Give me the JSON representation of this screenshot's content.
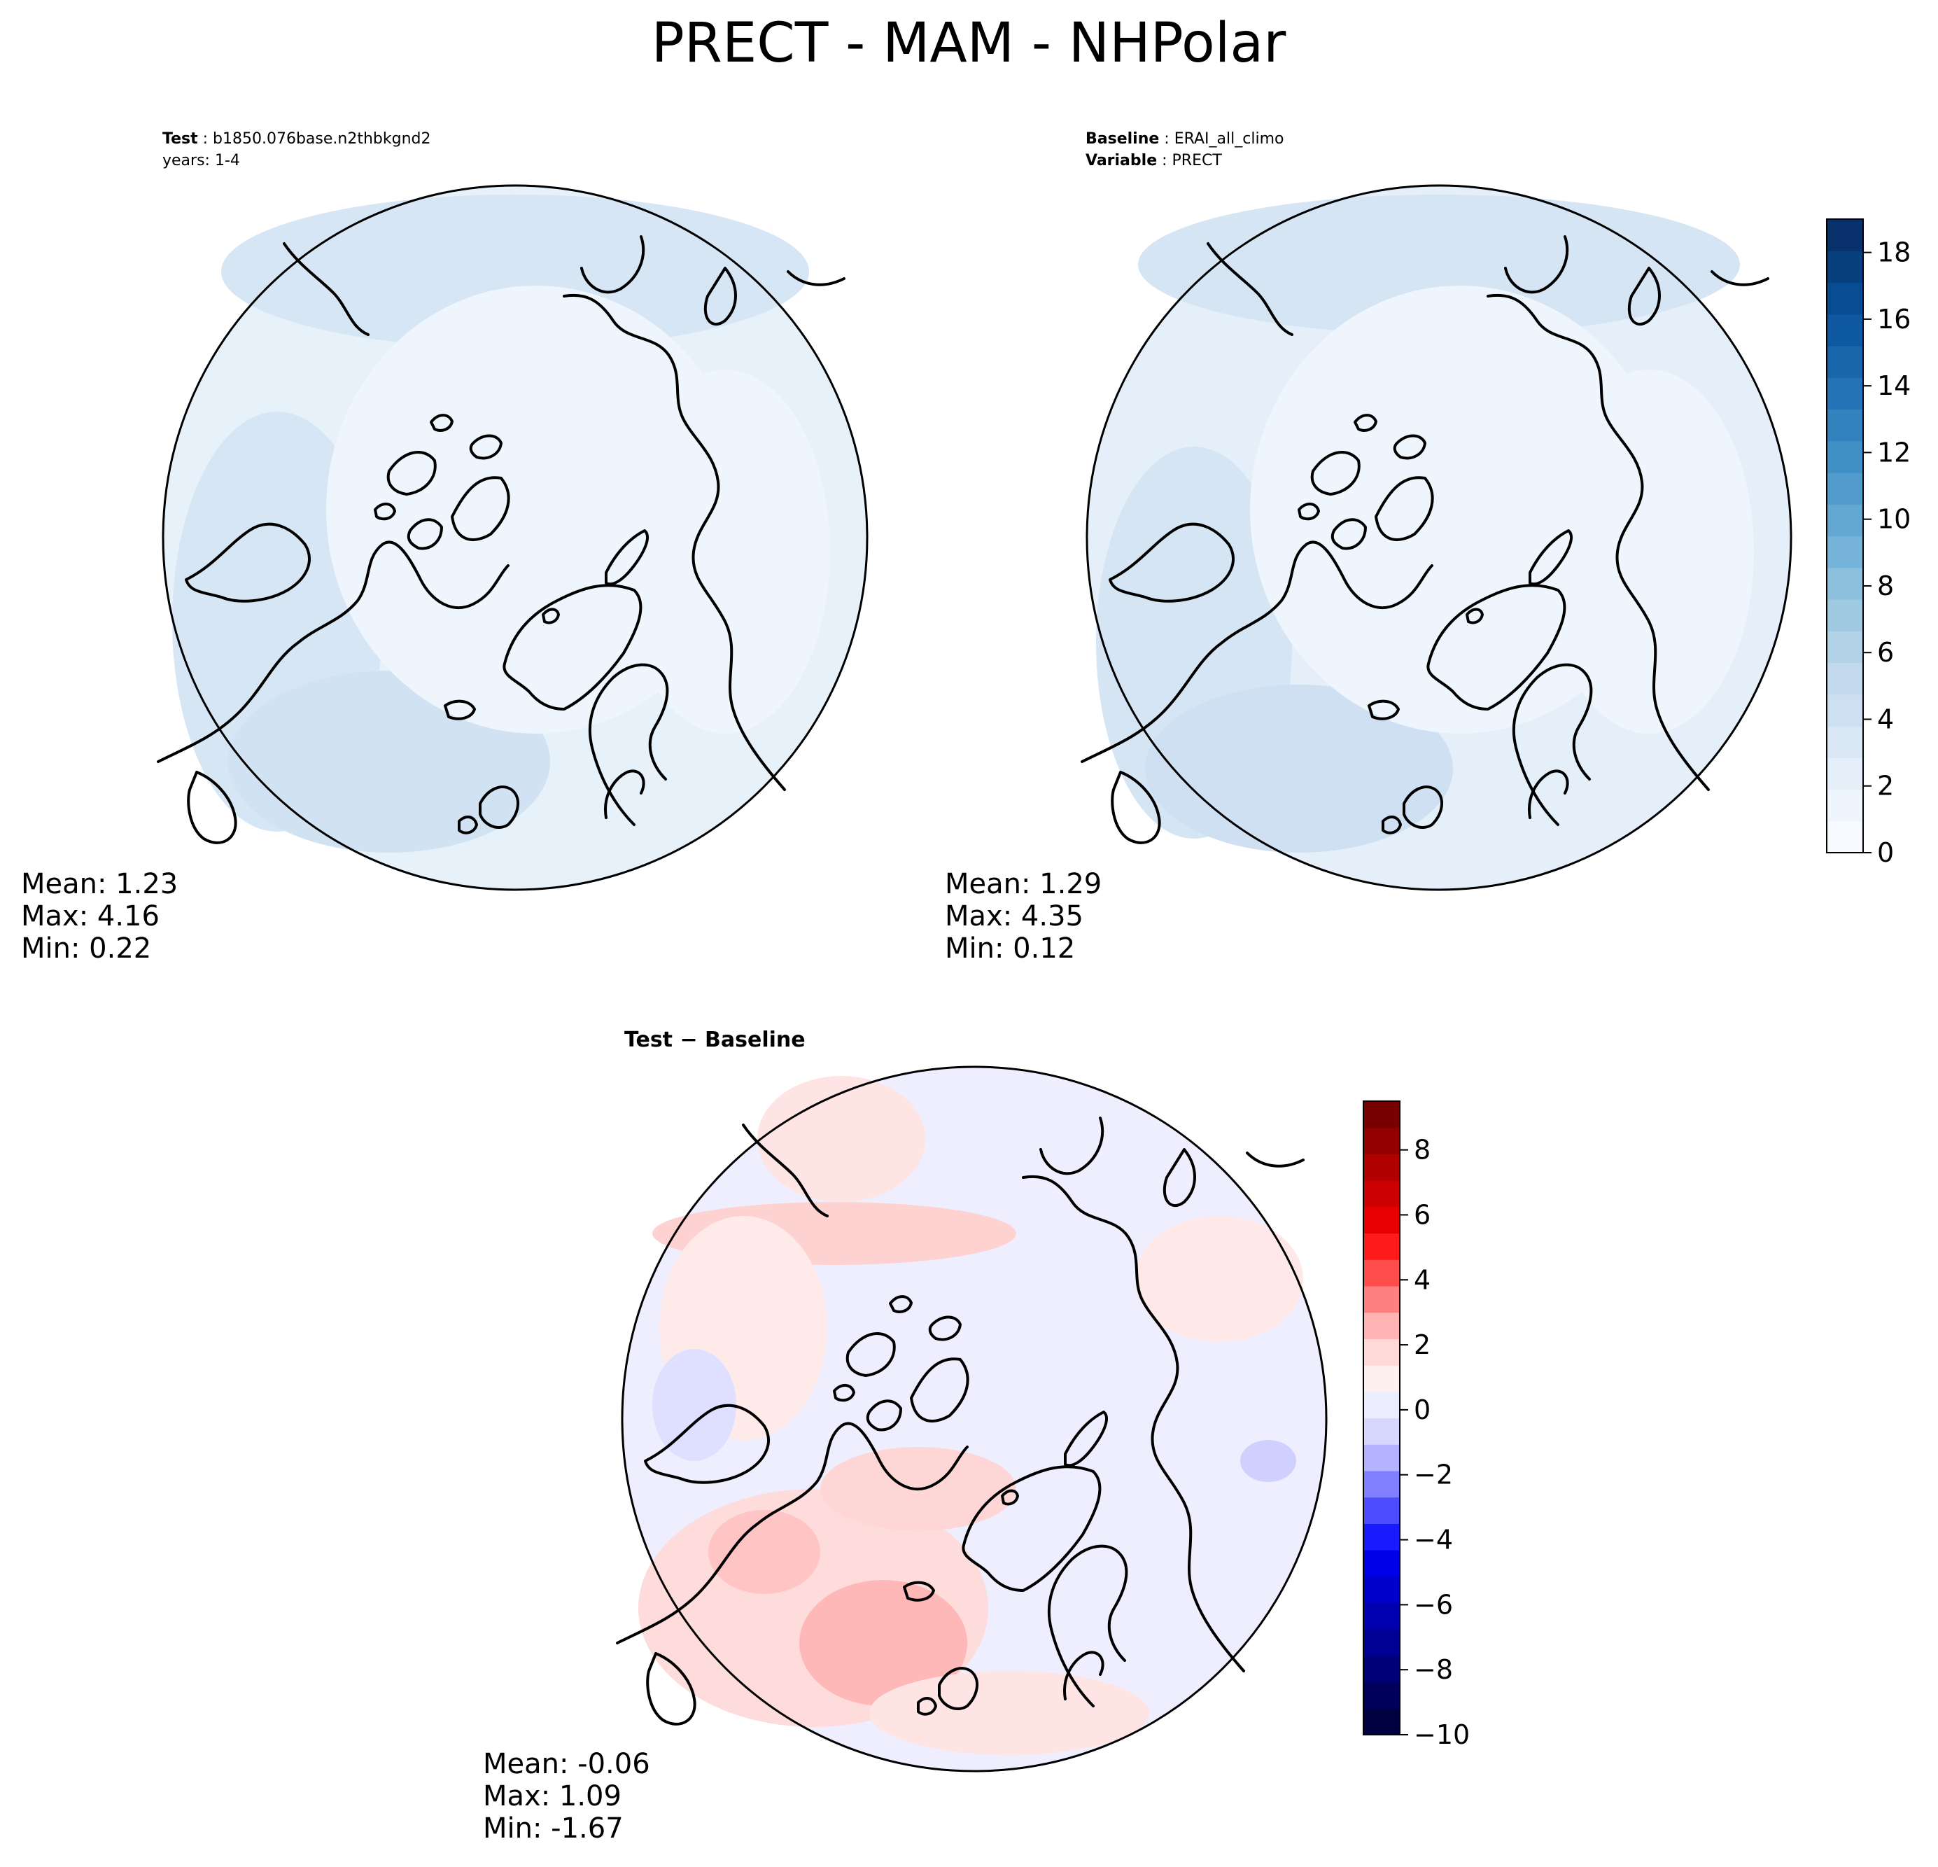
{
  "title": "PRECT - MAM - NHPolar",
  "panels": {
    "test": {
      "label_key": "Test",
      "label_value": "b1850.076base.n2thbkgnd2",
      "years": "years: 1-4",
      "stats": {
        "mean": "Mean:  1.23",
        "max": "Max:  4.16",
        "min": "Min:  0.22"
      }
    },
    "baseline": {
      "label_key": "Baseline",
      "label_value": "ERAI_all_climo",
      "variable_key": "Variable",
      "variable_value": "PRECT",
      "stats": {
        "mean": "Mean:  1.29",
        "max": "Max:  4.35",
        "min": "Min:  0.12"
      }
    },
    "diff": {
      "title": "Test − Baseline",
      "stats": {
        "mean": "Mean: -0.06",
        "max": "Max:  1.09",
        "min": "Min: -1.67"
      }
    }
  },
  "colorbar_main": {
    "ticks": [
      "0",
      "2",
      "4",
      "6",
      "8",
      "10",
      "12",
      "14",
      "16",
      "18"
    ],
    "range": [
      0,
      19
    ],
    "colors": [
      "#f7fbff",
      "#eef5fc",
      "#e4eff9",
      "#d9e7f5",
      "#cde0f1",
      "#c2d9ee",
      "#b2d2e8",
      "#a0c9e2",
      "#8dc0dd",
      "#77b4d9",
      "#62a8d3",
      "#519ccc",
      "#4090c5",
      "#3182bd",
      "#2473b6",
      "#1966ad",
      "#0e59a2",
      "#084c94",
      "#08407d",
      "#08306b"
    ]
  },
  "colorbar_diff": {
    "ticks": [
      "−10",
      "−8",
      "−6",
      "−4",
      "−2",
      "0",
      "2",
      "4",
      "6",
      "8"
    ],
    "range": [
      -10,
      9.5
    ],
    "colors": [
      "#000040",
      "#00005c",
      "#000078",
      "#000094",
      "#0000b0",
      "#0000cc",
      "#0000e8",
      "#1a1aff",
      "#4d4dff",
      "#8080ff",
      "#b3b3ff",
      "#d6d6ff",
      "#ececff",
      "#fff0f0",
      "#ffd8d8",
      "#ffb3b3",
      "#ff8080",
      "#ff4d4d",
      "#ff1a1a",
      "#e80000",
      "#cc0000",
      "#b00000",
      "#940000",
      "#780000"
    ]
  },
  "chart_data": [
    {
      "type": "heatmap",
      "title": "Test: b1850.076base.n2thbkgnd2",
      "subtitle": "years: 1-4",
      "projection": "north-polar-stereographic",
      "colorbar": "shared-right",
      "stats": {
        "mean": 1.23,
        "max": 4.16,
        "min": 0.22
      }
    },
    {
      "type": "heatmap",
      "title": "Baseline: ERAI_all_climo",
      "subtitle": "Variable: PRECT",
      "projection": "north-polar-stereographic",
      "colorbar": "right",
      "colorbar_range": [
        0,
        19
      ],
      "colorbar_ticks": [
        0,
        2,
        4,
        6,
        8,
        10,
        12,
        14,
        16,
        18
      ],
      "stats": {
        "mean": 1.29,
        "max": 4.35,
        "min": 0.12
      }
    },
    {
      "type": "heatmap",
      "title": "Test − Baseline",
      "projection": "north-polar-stereographic",
      "colorbar": "right",
      "colorbar_range": [
        -10,
        9.5
      ],
      "colorbar_ticks": [
        -10,
        -8,
        -6,
        -4,
        -2,
        0,
        2,
        4,
        6,
        8
      ],
      "stats": {
        "mean": -0.06,
        "max": 1.09,
        "min": -1.67
      }
    }
  ]
}
